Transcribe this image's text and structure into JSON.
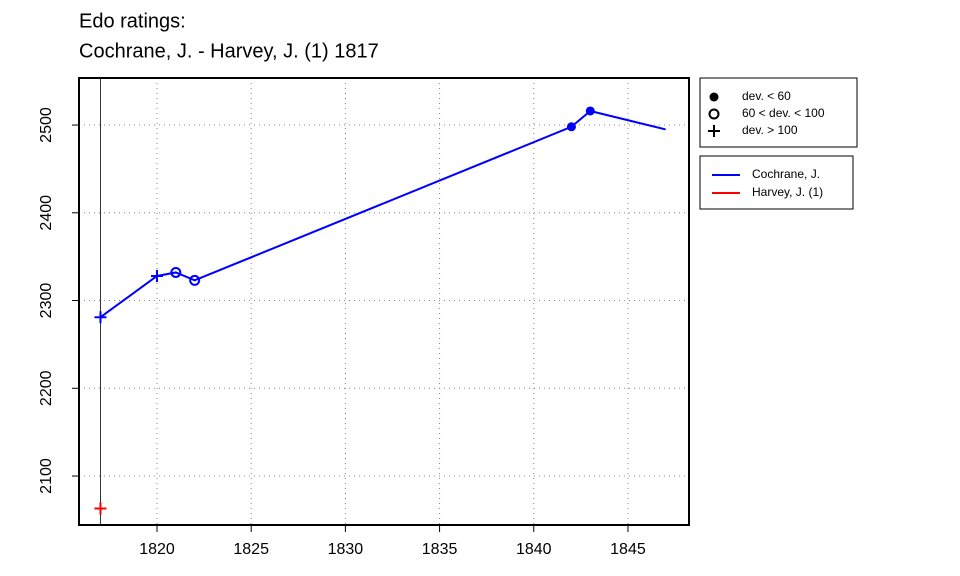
{
  "chart_data": {
    "type": "line",
    "title": [
      "Edo ratings:",
      "Cochrane, J. - Harvey, J. (1) 1817"
    ],
    "xlim": [
      1815.86,
      1848.24
    ],
    "xticks": [
      1820,
      1825,
      1830,
      1835,
      1840,
      1845
    ],
    "ylim": [
      2044.2,
      2553.6
    ],
    "yticks": [
      2100,
      2200,
      2300,
      2400,
      2500
    ],
    "grid": true,
    "vline": 1817,
    "deviation_legend": [
      {
        "label": "dev. < 60",
        "symbol": "filled-circle"
      },
      {
        "label": "60 < dev. < 100",
        "symbol": "open-circle"
      },
      {
        "label": "dev. > 100",
        "symbol": "plus"
      }
    ],
    "series": [
      {
        "name": "Cochrane, J.",
        "color": "#0000ff",
        "x": [
          1817,
          1820,
          1821,
          1822,
          1842,
          1843,
          1847
        ],
        "values": [
          2281,
          2328,
          2332,
          2323,
          2498,
          2516,
          2495
        ],
        "markers": [
          2,
          2,
          1,
          1,
          0,
          0,
          null
        ]
      },
      {
        "name": "Harvey, J. (1)",
        "color": "#ff0000",
        "x": [
          1817
        ],
        "values": [
          2063
        ],
        "markers": [
          2
        ]
      }
    ]
  }
}
